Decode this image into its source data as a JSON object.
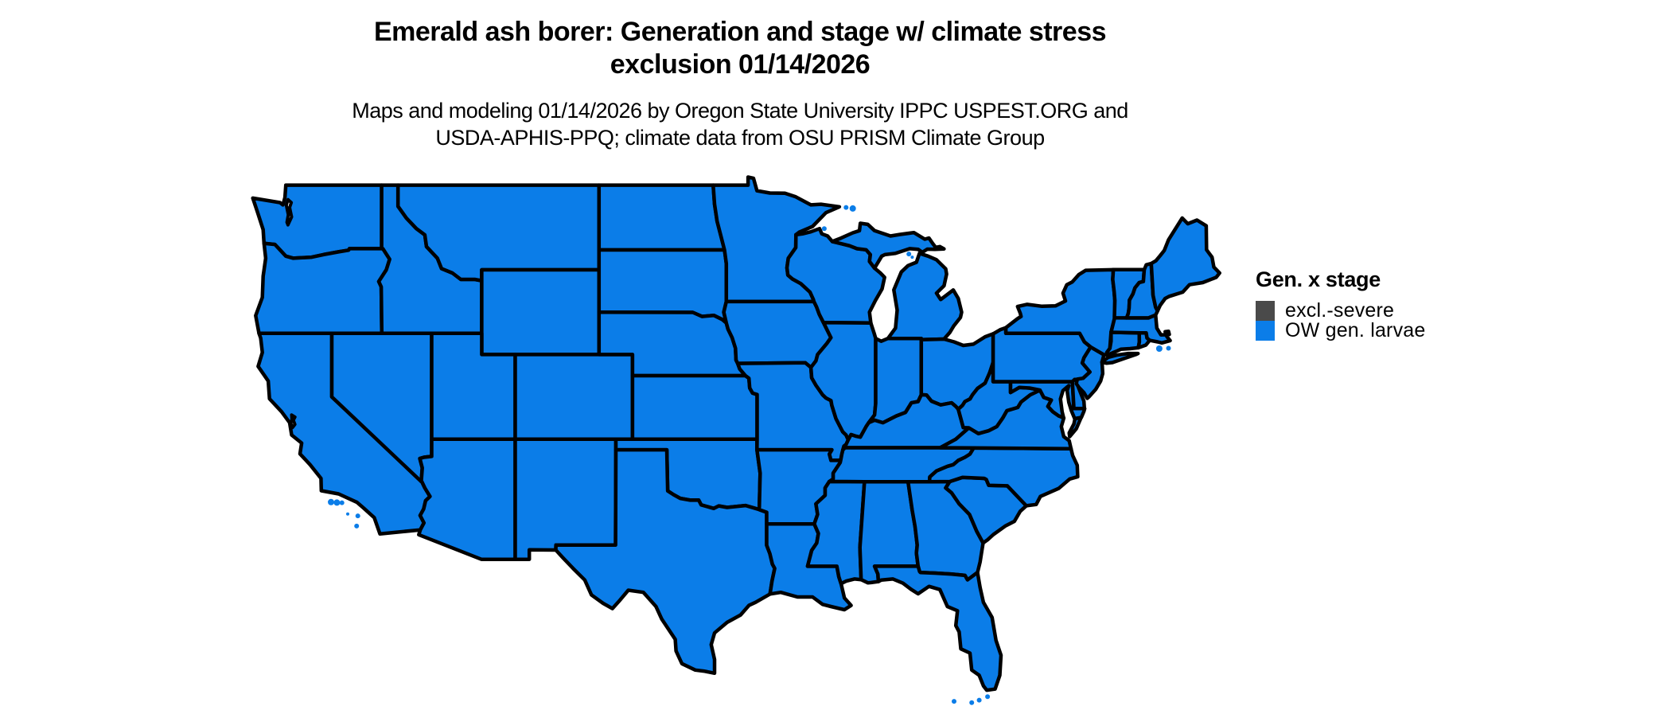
{
  "title": {
    "line1": "Emerald ash borer: Generation and stage w/ climate stress",
    "line2": "exclusion 01/14/2026"
  },
  "subtitle": {
    "line1": "Maps and modeling 01/14/2026 by Oregon State University IPPC USPEST.ORG and",
    "line2": "USDA-APHIS-PPQ; climate data from OSU PRISM Climate Group"
  },
  "legend": {
    "title": "Gen. x stage",
    "items": [
      {
        "label": "excl.-severe",
        "color": "#4a4a4a"
      },
      {
        "label": "OW gen. larvae",
        "color": "#0b7de8"
      }
    ]
  },
  "map": {
    "region": "Continental United States",
    "fill_color": "#0b7de8",
    "border_color": "#000000",
    "water_color": "#ffffff",
    "background_color": "#ffffff"
  }
}
